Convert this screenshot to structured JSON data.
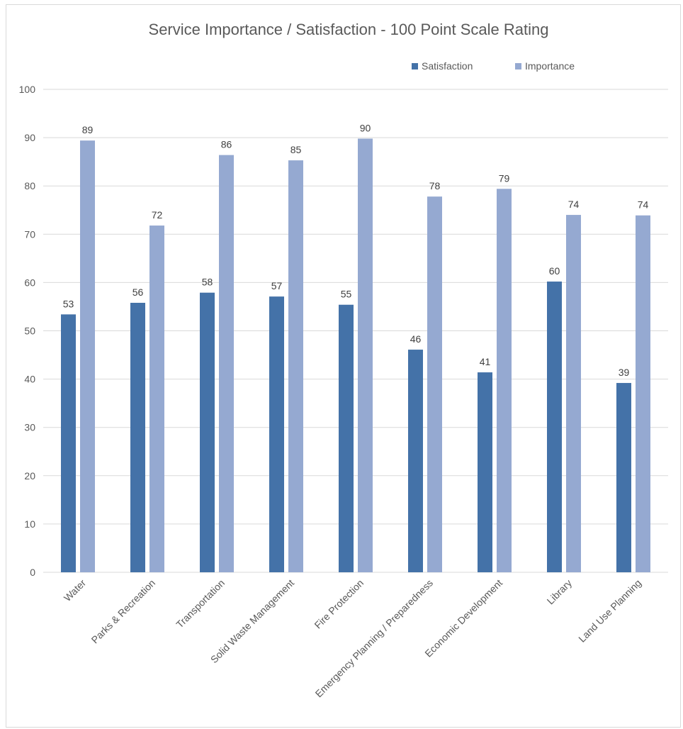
{
  "chart_data": {
    "type": "bar",
    "title": "Service Importance / Satisfaction - 100 Point Scale Rating",
    "xlabel": "",
    "ylabel": "",
    "ylim": [
      0,
      100
    ],
    "yticks": [
      0,
      10,
      20,
      30,
      40,
      50,
      60,
      70,
      80,
      90,
      100
    ],
    "grid": true,
    "legend_position": "top-right",
    "categories": [
      "Water",
      "Parks & Recreation",
      "Transportation",
      "Solid Waste Management",
      "Fire Protection",
      "Emergency Planning / Preparedness",
      "Economic Development",
      "Library",
      "Land Use Planning"
    ],
    "series": [
      {
        "name": "Satisfaction",
        "color": "#4472a8",
        "values": [
          53.4,
          55.8,
          57.9,
          57.1,
          55.4,
          46.1,
          41.4,
          60.2,
          39.2
        ],
        "labels": [
          "53",
          "56",
          "58",
          "57",
          "55",
          "46",
          "41",
          "60",
          "39"
        ]
      },
      {
        "name": "Importance",
        "color": "#95a9d1",
        "values": [
          89.4,
          71.8,
          86.4,
          85.3,
          89.8,
          77.8,
          79.4,
          74.0,
          73.9
        ],
        "labels": [
          "89",
          "72",
          "86",
          "85",
          "90",
          "78",
          "79",
          "74",
          "74"
        ]
      }
    ]
  }
}
